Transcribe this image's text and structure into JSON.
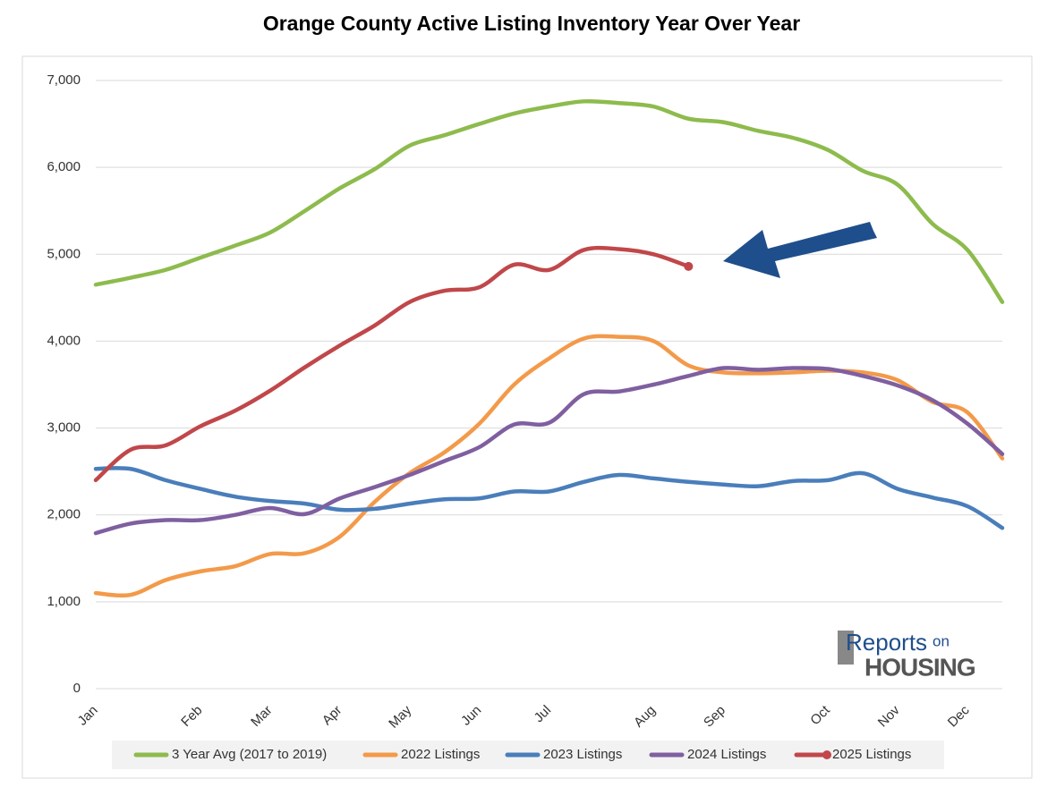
{
  "chart_data": {
    "type": "line",
    "title": "Orange County Active Listing Inventory Year Over Year",
    "categories": [
      "Jan",
      null,
      null,
      "Feb",
      null,
      "Mar",
      null,
      "Apr",
      null,
      "May",
      null,
      "Jun",
      null,
      "Jul",
      null,
      null,
      "Aug",
      null,
      "Sep",
      null,
      null,
      "Oct",
      null,
      "Nov",
      null,
      "Dec",
      null
    ],
    "ylim": [
      0,
      7000
    ],
    "yticks": [
      0,
      {
        "value": 1000,
        "label": "1,000"
      },
      {
        "value": 2000,
        "label": "2,000"
      },
      {
        "value": 3000,
        "label": "3,000"
      },
      {
        "value": 4000,
        "label": "4,000"
      },
      {
        "value": 5000,
        "label": "5,000"
      },
      {
        "value": 6000,
        "label": "6,000"
      },
      {
        "value": 7000,
        "label": "7,000"
      }
    ],
    "grid": true,
    "legend": "bottom",
    "series": [
      {
        "name": "3 Year Avg (2017 to 2019)",
        "color": "#8dbb4d",
        "values": [
          4650,
          4730,
          4820,
          4960,
          5100,
          5250,
          5500,
          5760,
          5980,
          6250,
          6370,
          6500,
          6620,
          6700,
          6760,
          6740,
          6700,
          6560,
          6520,
          6420,
          6340,
          6200,
          5960,
          5800,
          5350,
          5050,
          4450
        ]
      },
      {
        "name": "2022 Listings",
        "color": "#f39a4a",
        "values": [
          1100,
          1080,
          1250,
          1350,
          1410,
          1550,
          1560,
          1750,
          2150,
          2480,
          2720,
          3050,
          3500,
          3800,
          4030,
          4050,
          4000,
          3720,
          3640,
          3630,
          3640,
          3660,
          3640,
          3550,
          3300,
          3180,
          2650
        ]
      },
      {
        "name": "2023 Listings",
        "color": "#4a7ebb",
        "values": [
          2530,
          2530,
          2400,
          2300,
          2210,
          2160,
          2130,
          2060,
          2070,
          2130,
          2180,
          2190,
          2270,
          2270,
          2380,
          2460,
          2420,
          2380,
          2350,
          2330,
          2390,
          2400,
          2480,
          2300,
          2200,
          2100,
          1850
        ]
      },
      {
        "name": "2024 Listings",
        "color": "#7f5fa0",
        "values": [
          1790,
          1900,
          1940,
          1940,
          2000,
          2080,
          2010,
          2190,
          2320,
          2460,
          2620,
          2780,
          3040,
          3060,
          3390,
          3420,
          3500,
          3600,
          3690,
          3670,
          3690,
          3680,
          3600,
          3490,
          3320,
          3050,
          2700
        ]
      },
      {
        "name": "2025 Listings",
        "color": "#c0474a",
        "marker_end": true,
        "values": [
          2400,
          2750,
          2800,
          3020,
          3200,
          3430,
          3700,
          3950,
          4180,
          4450,
          4580,
          4620,
          4880,
          4820,
          5050,
          5060,
          5000,
          4860,
          null,
          null,
          null,
          null,
          null,
          null,
          null,
          null,
          null
        ]
      }
    ]
  },
  "logo": {
    "word1": "Reports",
    "word2": "on",
    "word3": "HOUSING"
  }
}
